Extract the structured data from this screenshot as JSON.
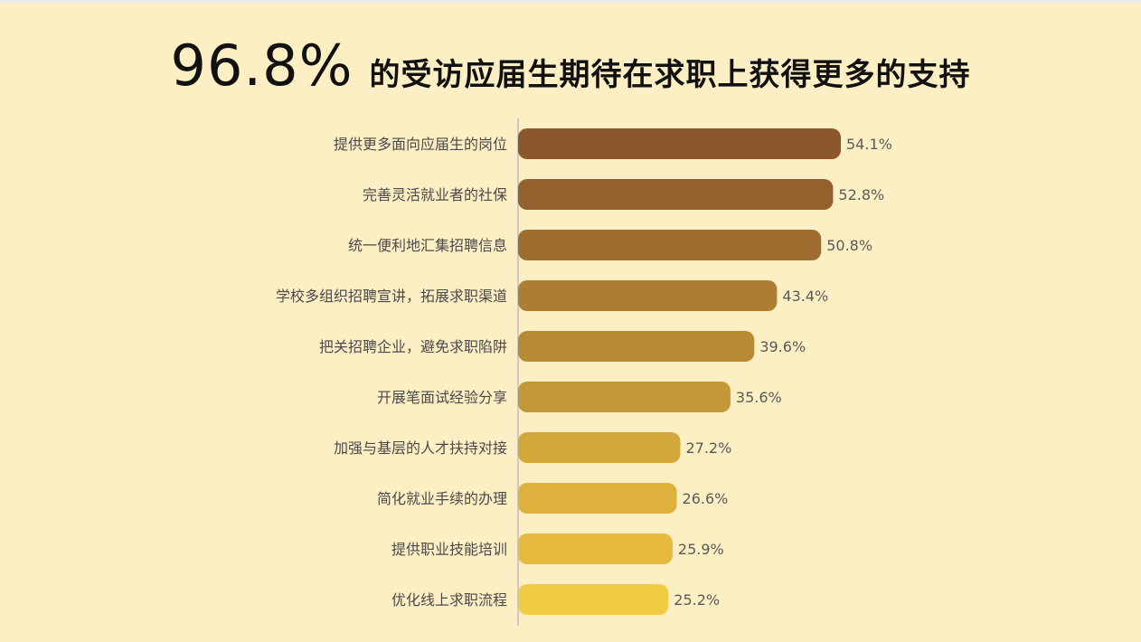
{
  "header": {
    "highlight": "96.8%",
    "title": "的受访应届生期待在求职上获得更多的支持"
  },
  "chart_data": {
    "type": "bar",
    "orientation": "horizontal",
    "categories": [
      "提供更多面向应届生的岗位",
      "完善灵活就业者的社保",
      "统一便利地汇集招聘信息",
      "学校多组织招聘宣讲，拓展求职渠道",
      "把关招聘企业，避免求职陷阱",
      "开展笔面试经验分享",
      "加强与基层的人才扶持对接",
      "简化就业手续的办理",
      "提供职业技能培训",
      "优化线上求职流程"
    ],
    "values": [
      54.1,
      52.8,
      50.8,
      43.4,
      39.6,
      35.6,
      27.2,
      26.6,
      25.9,
      25.2
    ],
    "value_labels": [
      "54.1%",
      "52.8%",
      "50.8%",
      "43.4%",
      "39.6%",
      "35.6%",
      "27.2%",
      "26.6%",
      "25.9%",
      "25.2%"
    ],
    "unit": "%",
    "xlim": [
      0,
      54.1
    ],
    "grid": false,
    "legend": "none",
    "colors": [
      "#8b572b",
      "#94612e",
      "#a06d31",
      "#ad7d33",
      "#b98a35",
      "#c59837",
      "#d3a73a",
      "#ddb13c",
      "#e6ba3f",
      "#f2cb45"
    ],
    "axis_color": "#c9c9c9"
  }
}
